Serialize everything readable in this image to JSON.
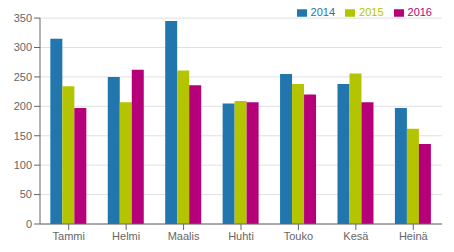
{
  "chart_data": {
    "type": "bar",
    "categories": [
      "Tammi",
      "Helmi",
      "Maalis",
      "Huhti",
      "Touko",
      "Kesä",
      "Heinä"
    ],
    "series": [
      {
        "name": "2014",
        "color": "#2176ae",
        "values": [
          315,
          250,
          345,
          205,
          255,
          238,
          197
        ]
      },
      {
        "name": "2015",
        "color": "#b5c400",
        "values": [
          234,
          207,
          261,
          209,
          238,
          256,
          162
        ]
      },
      {
        "name": "2016",
        "color": "#b5007a",
        "values": [
          197,
          262,
          236,
          207,
          220,
          207,
          136
        ]
      }
    ],
    "ylim": [
      0,
      350
    ],
    "yticks": [
      0,
      50,
      100,
      150,
      200,
      250,
      300,
      350
    ],
    "grid": true,
    "legend": "upper right"
  }
}
